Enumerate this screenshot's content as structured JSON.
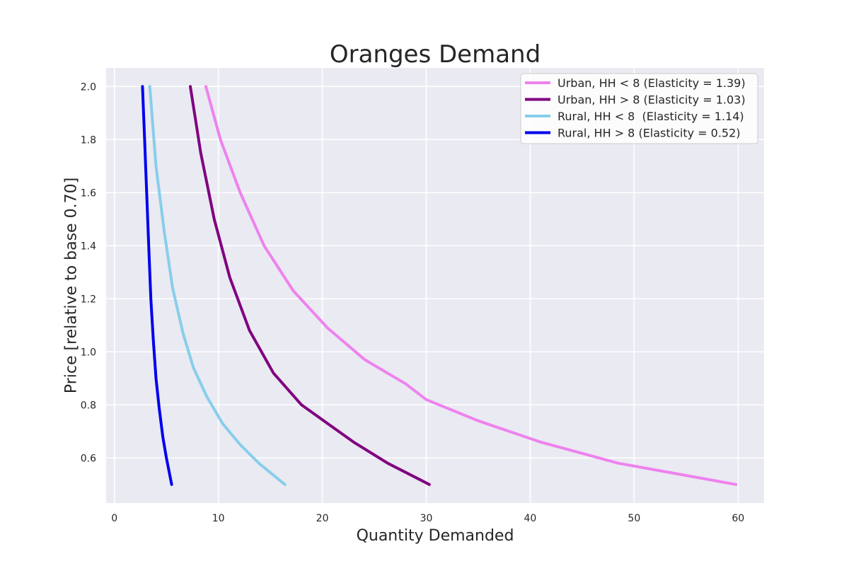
{
  "chart_data": {
    "type": "line",
    "title": "Oranges Demand",
    "xlabel": "Quantity Demanded",
    "ylabel": "Price [relative to base 0.70]",
    "xlim": [
      -0.8,
      62.5
    ],
    "ylim": [
      0.43,
      2.07
    ],
    "xticks": [
      0,
      10,
      20,
      30,
      40,
      50,
      60
    ],
    "yticks": [
      0.6,
      0.8,
      1.0,
      1.2,
      1.4,
      1.6,
      1.8,
      2.0
    ],
    "ytick_labels": [
      "0.6",
      "0.8",
      "1.0",
      "1.2",
      "1.4",
      "1.6",
      "1.8",
      "2.0"
    ],
    "grid": true,
    "legend_position": "top-right",
    "background_color": "#eaeaf2",
    "series": [
      {
        "name": "Urban, HH < 8 (Elasticity = 1.39)",
        "color": "#ee82ee",
        "x": [
          8.8,
          10.2,
          12.1,
          14.4,
          17.2,
          20.5,
          24.1,
          28.0,
          30.0,
          35.0,
          41.0,
          48.5,
          59.8
        ],
        "y": [
          2.0,
          1.8,
          1.6,
          1.4,
          1.23,
          1.09,
          0.97,
          0.88,
          0.82,
          0.74,
          0.66,
          0.58,
          0.5
        ]
      },
      {
        "name": "Urban, HH > 8 (Elasticity = 1.03)",
        "color": "#800080",
        "x": [
          7.3,
          8.3,
          9.6,
          11.1,
          13.0,
          15.3,
          18.0,
          20.5,
          23.0,
          26.3,
          30.3
        ],
        "y": [
          2.0,
          1.75,
          1.5,
          1.28,
          1.08,
          0.92,
          0.8,
          0.73,
          0.66,
          0.58,
          0.5
        ]
      },
      {
        "name": "Rural, HH < 8  (Elasticity = 1.14)",
        "color": "#87ceeb",
        "x": [
          3.4,
          4.0,
          4.8,
          5.6,
          6.6,
          7.6,
          8.9,
          10.4,
          12.1,
          13.9,
          16.4
        ],
        "y": [
          2.0,
          1.7,
          1.45,
          1.24,
          1.07,
          0.94,
          0.83,
          0.73,
          0.65,
          0.58,
          0.5
        ]
      },
      {
        "name": "Rural, HH > 8 (Elasticity = 0.52)",
        "color": "#0000ee",
        "x": [
          2.7,
          2.9,
          3.1,
          3.3,
          3.5,
          3.75,
          4.0,
          4.3,
          4.65,
          5.0,
          5.5
        ],
        "y": [
          2.0,
          1.8,
          1.6,
          1.4,
          1.2,
          1.04,
          0.9,
          0.79,
          0.68,
          0.6,
          0.5
        ]
      }
    ]
  }
}
